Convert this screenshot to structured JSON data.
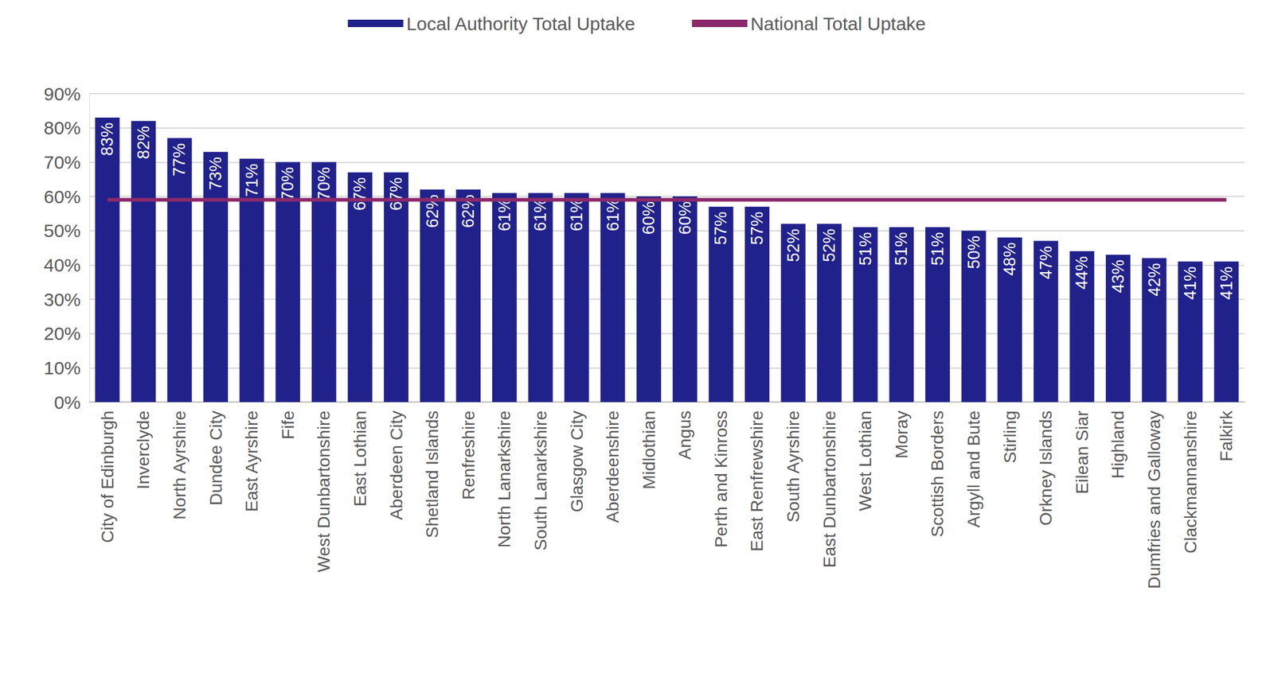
{
  "chart_data": {
    "type": "bar",
    "categories": [
      "City of Edinburgh",
      "Inverclyde",
      "North Ayrshire",
      "Dundee City",
      "East Ayrshire",
      "Fife",
      "West Dunbartonshire",
      "East Lothian",
      "Aberdeen City",
      "Shetland Islands",
      "Renfreshire",
      "North Lanarkshire",
      "South Lanarkshire",
      "Glasgow City",
      "Aberdeenshire",
      "Midlothian",
      "Angus",
      "Perth and Kinross",
      "East Renfrewshire",
      "South Ayrshire",
      "East Dunbartonshire",
      "West Lothian",
      "Moray",
      "Scottish Borders",
      "Argyll and Bute",
      "Stirling",
      "Orkney Islands",
      "Eilean Siar",
      "Highland",
      "Dumfries and Galloway",
      "Clackmannanshire",
      "Falkirk"
    ],
    "series": [
      {
        "name": "Local Authority Total Uptake",
        "type": "bar",
        "color": "#21218c",
        "values": [
          83,
          82,
          77,
          73,
          71,
          70,
          70,
          67,
          67,
          62,
          62,
          61,
          61,
          61,
          61,
          60,
          60,
          57,
          57,
          52,
          52,
          51,
          51,
          51,
          50,
          48,
          47,
          44,
          43,
          42,
          41,
          41
        ],
        "value_labels": [
          "83%",
          "82%",
          "77%",
          "73%",
          "71%",
          "70%",
          "70%",
          "67%",
          "67%",
          "62%",
          "62%",
          "61%",
          "61%",
          "61%",
          "61%",
          "60%",
          "60%",
          "57%",
          "57%",
          "52%",
          "52%",
          "51%",
          "51%",
          "51%",
          "50%",
          "48%",
          "47%",
          "44%",
          "43%",
          "42%",
          "41%",
          "41%"
        ]
      },
      {
        "name": "National Total Uptake",
        "type": "line",
        "color": "#8b2a6b",
        "values": [
          59,
          59,
          59,
          59,
          59,
          59,
          59,
          59,
          59,
          59,
          59,
          59,
          59,
          59,
          59,
          59,
          59,
          59,
          59,
          59,
          59,
          59,
          59,
          59,
          59,
          59,
          59,
          59,
          59,
          59,
          59,
          59
        ]
      }
    ],
    "ylim": [
      0,
      90
    ],
    "yticks": [
      {
        "value": 0,
        "label": "0%"
      },
      {
        "value": 10,
        "label": "10%"
      },
      {
        "value": 20,
        "label": "20%"
      },
      {
        "value": 30,
        "label": "30%"
      },
      {
        "value": 40,
        "label": "40%"
      },
      {
        "value": 50,
        "label": "50%"
      },
      {
        "value": 60,
        "label": "60%"
      },
      {
        "value": 70,
        "label": "70%"
      },
      {
        "value": 80,
        "label": "80%"
      },
      {
        "value": 90,
        "label": "90%"
      }
    ],
    "grid": true,
    "legend": "top",
    "data_labels": true
  }
}
